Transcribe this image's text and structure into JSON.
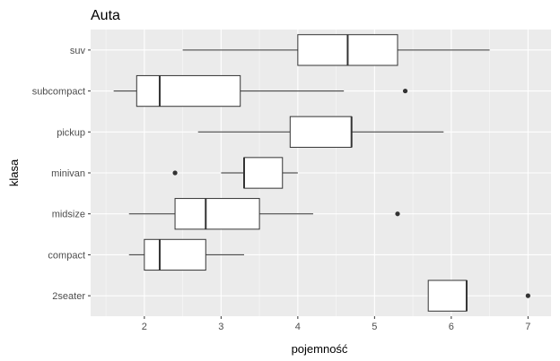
{
  "chart_data": {
    "type": "boxplot",
    "orientation": "horizontal",
    "title": "Auta",
    "xlabel": "pojemność",
    "ylabel": "klasa",
    "xlim": [
      1.3,
      7.3
    ],
    "x_ticks": [
      2,
      3,
      4,
      5,
      6,
      7
    ],
    "grid": true,
    "legend": "none",
    "colors": {
      "panel": "#ebebeb",
      "grid_major": "#ffffff",
      "box_fill": "#ffffff",
      "box_stroke": "#333333",
      "outlier": "#333333"
    },
    "categories": [
      "suv",
      "subcompact",
      "pickup",
      "minivan",
      "midsize",
      "compact",
      "2seater"
    ],
    "boxes": [
      {
        "category": "suv",
        "whisker_low": 2.5,
        "q1": 4.0,
        "median": 4.65,
        "q3": 5.3,
        "whisker_high": 6.5,
        "outliers": []
      },
      {
        "category": "subcompact",
        "whisker_low": 1.6,
        "q1": 1.9,
        "median": 2.2,
        "q3": 3.25,
        "whisker_high": 4.6,
        "outliers": [
          5.4
        ]
      },
      {
        "category": "pickup",
        "whisker_low": 2.7,
        "q1": 3.9,
        "median": 4.7,
        "q3": 4.7,
        "whisker_high": 5.9,
        "outliers": []
      },
      {
        "category": "minivan",
        "whisker_low": 3.0,
        "q1": 3.3,
        "median": 3.3,
        "q3": 3.8,
        "whisker_high": 4.0,
        "outliers": [
          2.4
        ]
      },
      {
        "category": "midsize",
        "whisker_low": 1.8,
        "q1": 2.4,
        "median": 2.8,
        "q3": 3.5,
        "whisker_high": 4.2,
        "outliers": [
          5.3
        ]
      },
      {
        "category": "compact",
        "whisker_low": 1.8,
        "q1": 2.0,
        "median": 2.2,
        "q3": 2.8,
        "whisker_high": 3.3,
        "outliers": []
      },
      {
        "category": "2seater",
        "whisker_low": 5.7,
        "q1": 5.7,
        "median": 6.2,
        "q3": 6.2,
        "whisker_high": 6.2,
        "outliers": [
          7.0
        ]
      }
    ]
  }
}
